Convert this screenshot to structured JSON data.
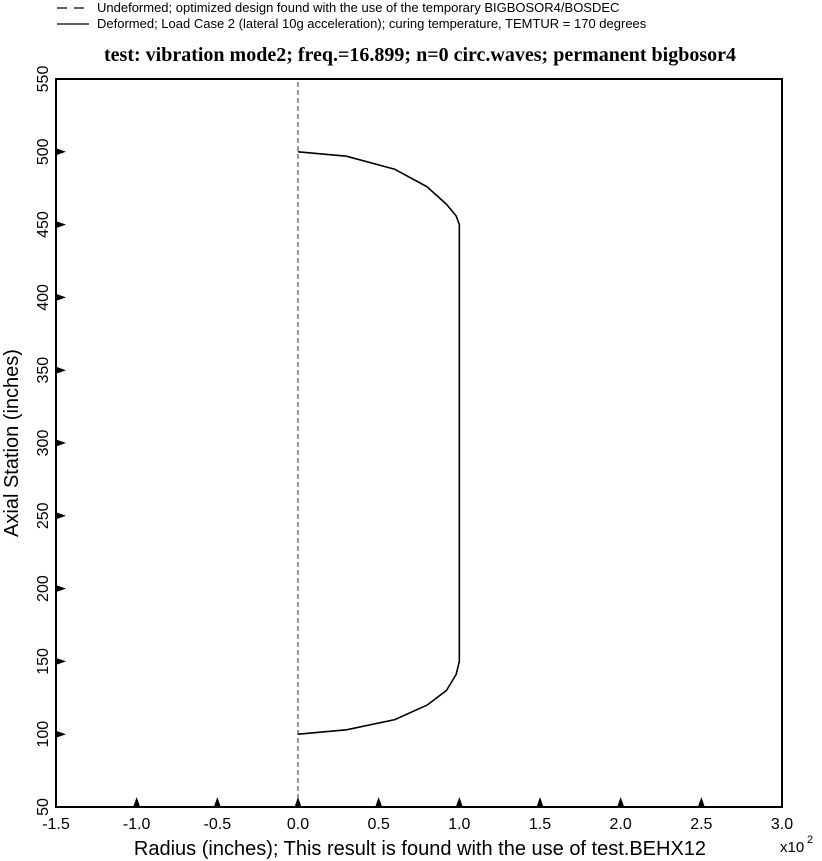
{
  "chart_data": {
    "type": "line",
    "title": "test: vibration mode2; freq.=16.899; n=0 circ.waves; permanent bigbosor4",
    "xlabel": "Radius (inches); This result is found with the use of test.BEHX12",
    "ylabel": "Axial Station (inches)",
    "x_multiplier": {
      "base": "x10",
      "exponent": "2"
    },
    "xlim": [
      -1.5,
      3.0
    ],
    "ylim": [
      50,
      550
    ],
    "x_ticks": [
      "-1.5",
      "-1.0",
      "-0.5",
      "0.0",
      "0.5",
      "1.0",
      "1.5",
      "2.0",
      "2.5",
      "3.0"
    ],
    "y_ticks": [
      "50",
      "100",
      "150",
      "200",
      "250",
      "300",
      "350",
      "400",
      "450",
      "500",
      "550"
    ],
    "grid": false,
    "legend_position": "top-left, outside plot",
    "legend": [
      {
        "label": "Undeformed; optimized design found with the use of the temporary BIGBOSOR4/BOSDEC",
        "style": "dashed"
      },
      {
        "label": "Deformed; Load Case 2 (lateral 10g acceleration); curing temperature, TEMTUR = 170 degrees",
        "style": "solid"
      }
    ],
    "series": [
      {
        "name": "Undeformed; optimized design found with the use of the temporary BIGBOSOR4/BOSDEC",
        "style": "dashed",
        "x": [
          0.0,
          0.0
        ],
        "y": [
          50,
          550
        ]
      },
      {
        "name": "Deformed; Load Case 2 (lateral 10g acceleration); curing temperature, TEMTUR = 170 degrees",
        "style": "solid",
        "x": [
          0.0,
          0.3,
          0.6,
          0.8,
          0.92,
          0.98,
          1.0,
          1.0,
          0.98,
          0.92,
          0.8,
          0.6,
          0.3,
          0.0
        ],
        "y": [
          500,
          497,
          488,
          476,
          464,
          456,
          450,
          150,
          141,
          130,
          120,
          110,
          103,
          100
        ]
      }
    ]
  }
}
